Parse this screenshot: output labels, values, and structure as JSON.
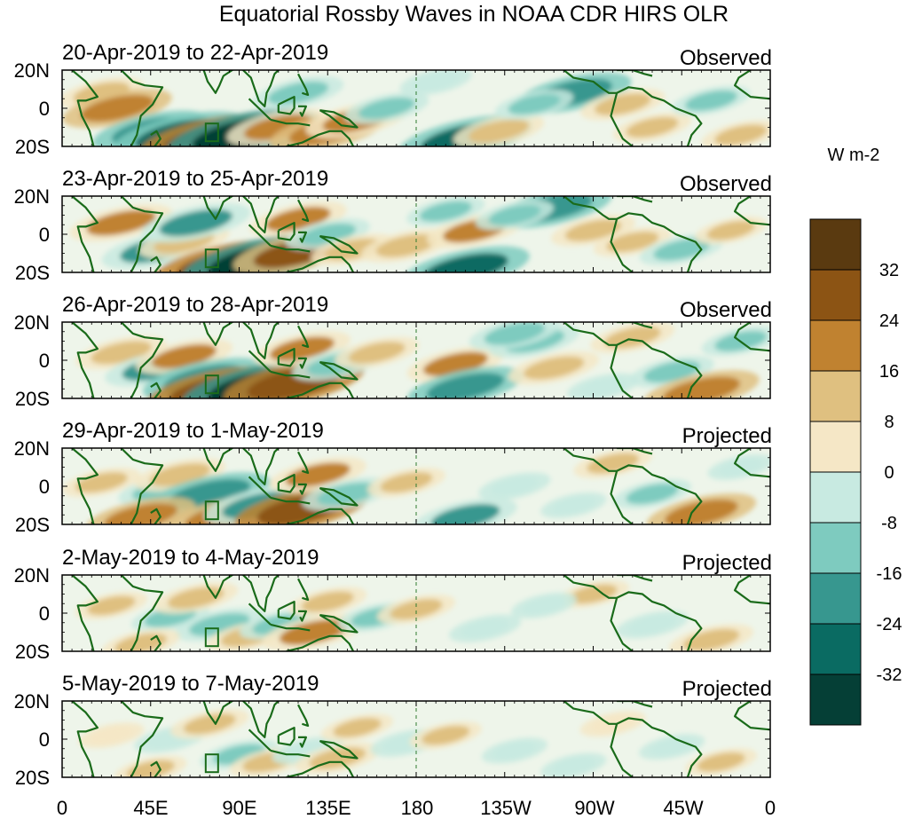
{
  "chart_data": {
    "type": "heatmap",
    "title": "Equatorial Rossby Waves in NOAA CDR HIRS OLR",
    "units": "W m-2",
    "x_tick_labels": [
      "0",
      "45E",
      "90E",
      "135E",
      "180",
      "135W",
      "90W",
      "45W",
      "0"
    ],
    "y_tick_labels": [
      "20N",
      "0",
      "20S"
    ],
    "ylim": [
      -20,
      20
    ],
    "xlim": [
      0,
      360
    ],
    "colorbar": {
      "tick_labels": [
        "32",
        "24",
        "16",
        "8",
        "0",
        "-8",
        "-16",
        "-24",
        "-32"
      ],
      "colors": [
        "#5a3a10",
        "#8c5414",
        "#c08230",
        "#dfc080",
        "#f5e7c6",
        "#c8eae1",
        "#7ecbbf",
        "#37978f",
        "#0a6b62",
        "#053f36"
      ]
    },
    "panels": [
      {
        "dates": "20-Apr-2019 to 22-Apr-2019",
        "type": "Observed"
      },
      {
        "dates": "23-Apr-2019 to 25-Apr-2019",
        "type": "Observed"
      },
      {
        "dates": "26-Apr-2019 to 28-Apr-2019",
        "type": "Observed"
      },
      {
        "dates": "29-Apr-2019 to 1-May-2019",
        "type": "Projected"
      },
      {
        "dates": "2-May-2019 to 4-May-2019",
        "type": "Projected"
      },
      {
        "dates": "5-May-2019 to 7-May-2019",
        "type": "Projected"
      }
    ],
    "anomalies": [
      [
        {
          "lon": 20,
          "lat": 8,
          "v": 12
        },
        {
          "lon": 28,
          "lat": 0,
          "v": 20
        },
        {
          "lon": 45,
          "lat": -12,
          "v": -22
        },
        {
          "lon": 60,
          "lat": -14,
          "v": -28
        },
        {
          "lon": 75,
          "lat": -16,
          "v": 30
        },
        {
          "lon": 92,
          "lat": -14,
          "v": -34
        },
        {
          "lon": 110,
          "lat": -10,
          "v": 18
        },
        {
          "lon": 120,
          "lat": 8,
          "v": -14
        },
        {
          "lon": 135,
          "lat": -12,
          "v": 22
        },
        {
          "lon": 150,
          "lat": -6,
          "v": 18
        },
        {
          "lon": 165,
          "lat": 0,
          "v": -12
        },
        {
          "lon": 205,
          "lat": -16,
          "v": -28
        },
        {
          "lon": 222,
          "lat": -12,
          "v": 14
        },
        {
          "lon": 260,
          "lat": 8,
          "v": -22
        },
        {
          "lon": 285,
          "lat": 2,
          "v": 12
        },
        {
          "lon": 300,
          "lat": -10,
          "v": 10
        },
        {
          "lon": 330,
          "lat": 4,
          "v": -10
        },
        {
          "lon": 345,
          "lat": -14,
          "v": 10
        },
        {
          "lon": 190,
          "lat": 14,
          "v": -8
        },
        {
          "lon": 240,
          "lat": 2,
          "v": -10
        }
      ],
      [
        {
          "lon": 30,
          "lat": 6,
          "v": 18
        },
        {
          "lon": 48,
          "lat": -8,
          "v": -20
        },
        {
          "lon": 62,
          "lat": -4,
          "v": 14
        },
        {
          "lon": 68,
          "lat": 6,
          "v": -20
        },
        {
          "lon": 82,
          "lat": -16,
          "v": 30
        },
        {
          "lon": 100,
          "lat": -14,
          "v": -34
        },
        {
          "lon": 118,
          "lat": -10,
          "v": 24
        },
        {
          "lon": 120,
          "lat": 8,
          "v": 16
        },
        {
          "lon": 135,
          "lat": 0,
          "v": -12
        },
        {
          "lon": 148,
          "lat": -8,
          "v": 12
        },
        {
          "lon": 175,
          "lat": -6,
          "v": 14
        },
        {
          "lon": 205,
          "lat": -18,
          "v": -26
        },
        {
          "lon": 210,
          "lat": 2,
          "v": 16
        },
        {
          "lon": 250,
          "lat": 14,
          "v": -22
        },
        {
          "lon": 270,
          "lat": 2,
          "v": 12
        },
        {
          "lon": 290,
          "lat": -4,
          "v": 10
        },
        {
          "lon": 315,
          "lat": -8,
          "v": -12
        },
        {
          "lon": 340,
          "lat": 2,
          "v": 8
        },
        {
          "lon": 195,
          "lat": 12,
          "v": -10
        },
        {
          "lon": 230,
          "lat": 10,
          "v": -10
        }
      ],
      [
        {
          "lon": 30,
          "lat": 4,
          "v": 14
        },
        {
          "lon": 48,
          "lat": -4,
          "v": -18
        },
        {
          "lon": 62,
          "lat": 2,
          "v": 16
        },
        {
          "lon": 72,
          "lat": -10,
          "v": -24
        },
        {
          "lon": 78,
          "lat": -16,
          "v": 30
        },
        {
          "lon": 100,
          "lat": -14,
          "v": -34
        },
        {
          "lon": 118,
          "lat": -12,
          "v": 30
        },
        {
          "lon": 122,
          "lat": 6,
          "v": 16
        },
        {
          "lon": 140,
          "lat": -2,
          "v": -14
        },
        {
          "lon": 160,
          "lat": 4,
          "v": 12
        },
        {
          "lon": 200,
          "lat": -2,
          "v": 16
        },
        {
          "lon": 205,
          "lat": -14,
          "v": -22
        },
        {
          "lon": 240,
          "lat": 10,
          "v": -14
        },
        {
          "lon": 250,
          "lat": -4,
          "v": 14
        },
        {
          "lon": 290,
          "lat": 12,
          "v": 12
        },
        {
          "lon": 310,
          "lat": -6,
          "v": -12
        },
        {
          "lon": 325,
          "lat": -16,
          "v": 22
        },
        {
          "lon": 345,
          "lat": 10,
          "v": -10
        },
        {
          "lon": 230,
          "lat": 14,
          "v": -14
        },
        {
          "lon": 275,
          "lat": -14,
          "v": -8
        }
      ],
      [
        {
          "lon": 20,
          "lat": 2,
          "v": 10
        },
        {
          "lon": 50,
          "lat": -2,
          "v": -12
        },
        {
          "lon": 60,
          "lat": 6,
          "v": 14
        },
        {
          "lon": 75,
          "lat": -4,
          "v": -24
        },
        {
          "lon": 82,
          "lat": -16,
          "v": 22
        },
        {
          "lon": 100,
          "lat": -10,
          "v": -20
        },
        {
          "lon": 122,
          "lat": -12,
          "v": 28
        },
        {
          "lon": 130,
          "lat": 6,
          "v": 16
        },
        {
          "lon": 145,
          "lat": -4,
          "v": -14
        },
        {
          "lon": 175,
          "lat": 2,
          "v": 10
        },
        {
          "lon": 205,
          "lat": -16,
          "v": -18
        },
        {
          "lon": 230,
          "lat": 0,
          "v": -8
        },
        {
          "lon": 280,
          "lat": 12,
          "v": 10
        },
        {
          "lon": 300,
          "lat": -4,
          "v": -10
        },
        {
          "lon": 325,
          "lat": -14,
          "v": 20
        },
        {
          "lon": 345,
          "lat": 10,
          "v": -6
        },
        {
          "lon": 40,
          "lat": -16,
          "v": 20
        },
        {
          "lon": 260,
          "lat": -10,
          "v": -6
        }
      ],
      [
        {
          "lon": 25,
          "lat": 4,
          "v": 8
        },
        {
          "lon": 55,
          "lat": -2,
          "v": -10
        },
        {
          "lon": 68,
          "lat": 8,
          "v": 12
        },
        {
          "lon": 80,
          "lat": -6,
          "v": -14
        },
        {
          "lon": 95,
          "lat": -12,
          "v": 12
        },
        {
          "lon": 110,
          "lat": -6,
          "v": -10
        },
        {
          "lon": 128,
          "lat": -10,
          "v": 18
        },
        {
          "lon": 135,
          "lat": 6,
          "v": 10
        },
        {
          "lon": 160,
          "lat": -2,
          "v": -10
        },
        {
          "lon": 180,
          "lat": 2,
          "v": 10
        },
        {
          "lon": 215,
          "lat": -8,
          "v": -8
        },
        {
          "lon": 270,
          "lat": 10,
          "v": 8
        },
        {
          "lon": 300,
          "lat": -6,
          "v": -8
        },
        {
          "lon": 330,
          "lat": -14,
          "v": 12
        },
        {
          "lon": 40,
          "lat": -16,
          "v": 10
        },
        {
          "lon": 245,
          "lat": 4,
          "v": -6
        }
      ],
      [
        {
          "lon": 25,
          "lat": 2,
          "v": 6
        },
        {
          "lon": 55,
          "lat": 0,
          "v": -8
        },
        {
          "lon": 75,
          "lat": 8,
          "v": 10
        },
        {
          "lon": 90,
          "lat": -8,
          "v": -10
        },
        {
          "lon": 105,
          "lat": -12,
          "v": 10
        },
        {
          "lon": 125,
          "lat": -6,
          "v": -8
        },
        {
          "lon": 140,
          "lat": -10,
          "v": 12
        },
        {
          "lon": 150,
          "lat": 6,
          "v": 8
        },
        {
          "lon": 175,
          "lat": -2,
          "v": -8
        },
        {
          "lon": 195,
          "lat": 2,
          "v": 8
        },
        {
          "lon": 230,
          "lat": -6,
          "v": -6
        },
        {
          "lon": 280,
          "lat": 8,
          "v": 6
        },
        {
          "lon": 310,
          "lat": -4,
          "v": -6
        },
        {
          "lon": 335,
          "lat": -12,
          "v": 8
        },
        {
          "lon": 45,
          "lat": -16,
          "v": 8
        },
        {
          "lon": 260,
          "lat": -14,
          "v": -6
        }
      ]
    ]
  }
}
